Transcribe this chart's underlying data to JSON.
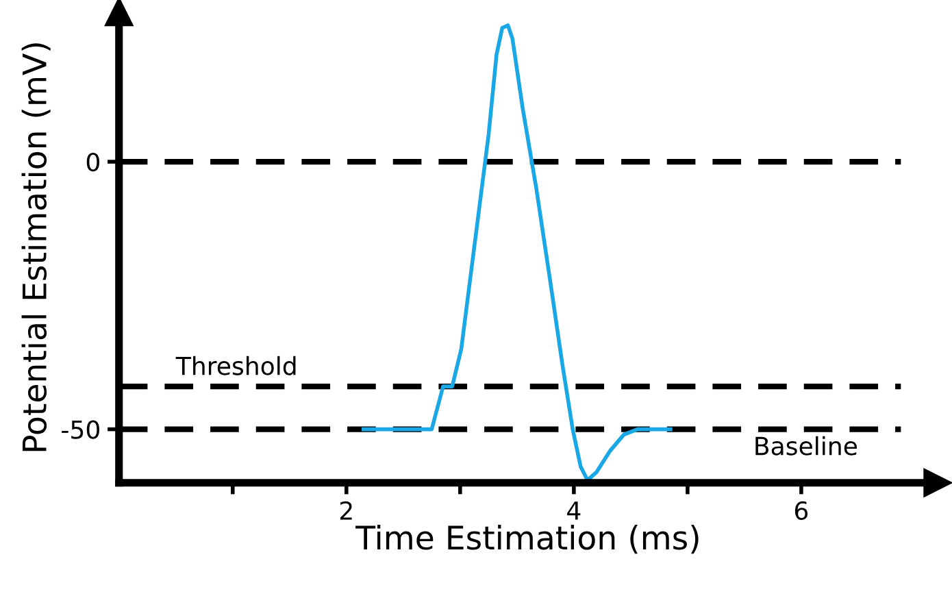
{
  "chart_data": {
    "type": "line",
    "xlabel": "Time Estimation (ms)",
    "ylabel": "Potential Estimation (mV)",
    "series": [
      {
        "color": "#1aa7e6",
        "x": [
          2.15,
          2.75,
          2.85,
          2.93,
          3.01,
          3.13,
          3.25,
          3.32,
          3.37,
          3.42,
          3.46,
          3.55,
          3.67,
          3.79,
          3.9,
          3.99,
          4.06,
          4.12,
          4.2,
          4.32,
          4.44,
          4.56,
          4.85
        ],
        "values": [
          -50,
          -50,
          -42,
          -42,
          -35,
          -15,
          5,
          20,
          25,
          25.5,
          23,
          10,
          -5,
          -22,
          -38,
          -50,
          -57,
          -59.5,
          -58,
          -54,
          -51,
          -50,
          -50
        ]
      }
    ],
    "xlim": [
      0,
      7.2
    ],
    "ylim": [
      -60,
      28
    ],
    "xticks": [
      {
        "value": 1,
        "label": null
      },
      2,
      {
        "value": 3,
        "label": null
      },
      4,
      {
        "value": 5,
        "label": null
      },
      6
    ],
    "yticks": [
      -50,
      0
    ],
    "ref_lines": [
      {
        "axis": "y",
        "value": 0,
        "label": null,
        "color": "#000000",
        "line_style": "dashed"
      },
      {
        "axis": "y",
        "value": -42,
        "label": "Threshold",
        "color": "#000000",
        "line_style": "dashed"
      },
      {
        "axis": "y",
        "value": -50,
        "label": "Baseline",
        "color": "#000000",
        "line_style": "dashed"
      }
    ],
    "grid": false,
    "legend": false,
    "marker": "none",
    "line_style": "solid"
  }
}
